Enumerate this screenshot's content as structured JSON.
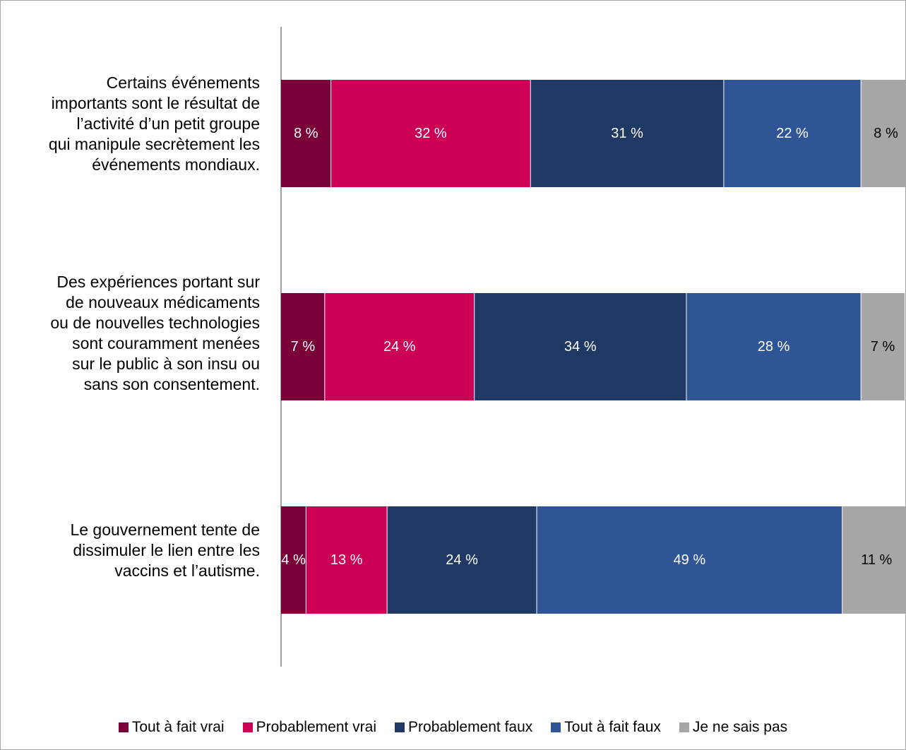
{
  "chart_data": {
    "type": "bar",
    "orientation": "horizontal",
    "stacked": true,
    "value_format": "{v} %",
    "xlim": [
      0,
      100
    ],
    "grid": false,
    "legend_position": "bottom",
    "categories": [
      "Certains événements importants sont le résultat de l’activité d’un petit groupe qui manipule secrètement les événements mondiaux.",
      "Des expériences portant sur de nouveaux médicaments ou de nouvelles technologies sont couramment menées sur le public à son insu ou sans son consentement.",
      "Le gouvernement tente de dissimuler le lien entre les vaccins et l’autisme."
    ],
    "series": [
      {
        "name": "Tout à fait vrai",
        "color": "#7b0037",
        "values": [
          8,
          7,
          4
        ]
      },
      {
        "name": "Probablement vrai",
        "color": "#cc0055",
        "values": [
          32,
          24,
          13
        ]
      },
      {
        "name": "Probablement faux",
        "color": "#203864",
        "values": [
          31,
          34,
          24
        ]
      },
      {
        "name": "Tout à fait faux",
        "color": "#2f5597",
        "values": [
          22,
          28,
          49
        ]
      },
      {
        "name": "Je ne sais pas",
        "color": "#a6a6a6",
        "values": [
          8,
          7,
          11
        ]
      }
    ],
    "label_colors": [
      "#ffffff",
      "#ffffff",
      "#ffffff",
      "#ffffff",
      "#000000"
    ]
  }
}
